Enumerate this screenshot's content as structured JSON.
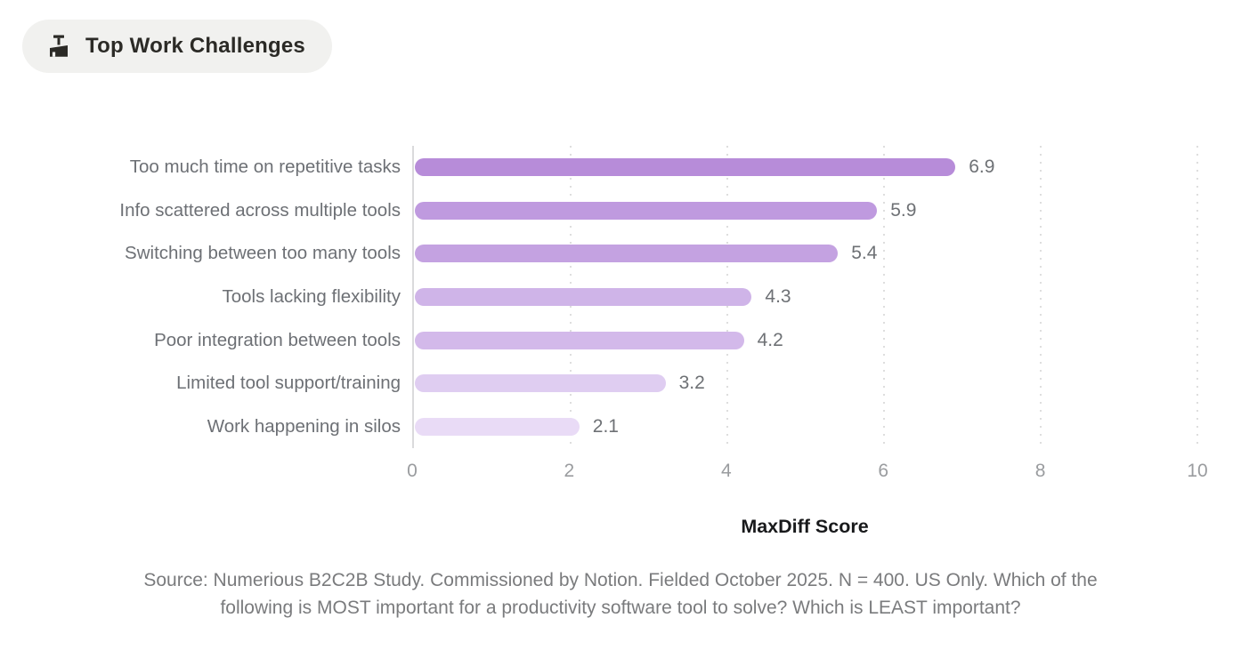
{
  "badge": {
    "label": "Top Work Challenges",
    "icon": "broom-icon"
  },
  "chart_data": {
    "type": "bar",
    "orientation": "horizontal",
    "title": "Top Work Challenges",
    "xlabel": "MaxDiff Score",
    "ylabel": "",
    "xlim": [
      0,
      10
    ],
    "xticks": [
      "0",
      "2",
      "4",
      "6",
      "8",
      "10"
    ],
    "grid": "vertical dotted gridlines at each tick, solid y-axis line at 0",
    "legend": "none",
    "categories": [
      "Too much time on repetitive tasks",
      "Info scattered across multiple tools",
      "Switching between too many tools",
      "Tools lacking flexibility",
      "Poor integration between tools",
      "Limited tool support/training",
      "Work happening in silos"
    ],
    "values": [
      6.9,
      5.9,
      5.4,
      4.3,
      4.2,
      3.2,
      2.1
    ],
    "value_labels": [
      "6.9",
      "5.9",
      "5.4",
      "4.3",
      "4.2",
      "3.2",
      "2.1"
    ],
    "bar_colors": [
      "#b78cd9",
      "#bf9adf",
      "#c4a2e1",
      "#cfb4e8",
      "#d3b9ea",
      "#dfcdf1",
      "#e9dbf6"
    ]
  },
  "colors": {
    "background": "#ffffff",
    "badge_background": "#f1f1ef",
    "badge_text": "#2b2a26",
    "category_label": "#6d7075",
    "value_label": "#6e7175",
    "tick_label": "#9a9c9f",
    "axis_line": "#dadadc",
    "gridline": "#dedede",
    "x_axis_title": "#18191b",
    "source_text": "#7a7b7d"
  },
  "source": {
    "lines": [
      "Source: Numerious B2C2B Study. Commissioned by Notion. Fielded October 2025. N = 400. US Only. Which of the",
      "following is MOST important for a productivity software tool to solve? Which is LEAST important?"
    ]
  }
}
